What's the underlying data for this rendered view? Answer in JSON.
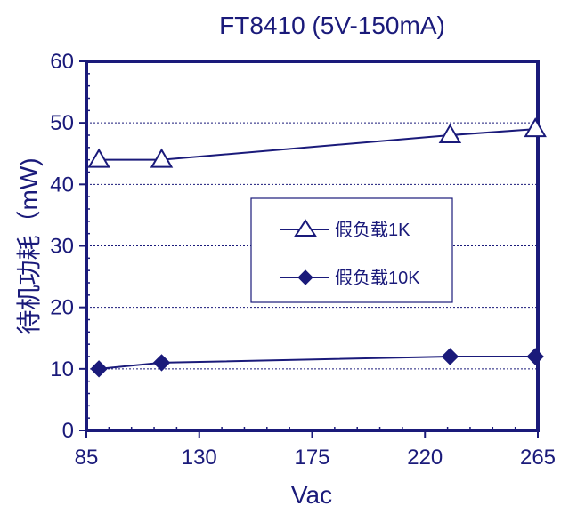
{
  "chart_data": {
    "type": "line",
    "title": "FT8410 (5V-150mA)",
    "xlabel": "Vac",
    "ylabel": "待机功耗（mW)",
    "xlim": [
      85,
      265
    ],
    "ylim": [
      0,
      60
    ],
    "xticks": [
      85,
      130,
      175,
      220,
      265
    ],
    "yticks": [
      0,
      10,
      20,
      30,
      40,
      50,
      60
    ],
    "grid": "horizontal",
    "legend_position": "center-right",
    "series": [
      {
        "name": "假负载1K",
        "marker": "triangle-open",
        "color": "#1a1a7a",
        "x": [
          90,
          115,
          230,
          264
        ],
        "y": [
          44,
          44,
          48,
          49
        ]
      },
      {
        "name": "假负载10K",
        "marker": "diamond-filled",
        "color": "#1a1a7a",
        "x": [
          90,
          115,
          230,
          264
        ],
        "y": [
          10,
          11,
          12,
          12
        ]
      }
    ]
  }
}
